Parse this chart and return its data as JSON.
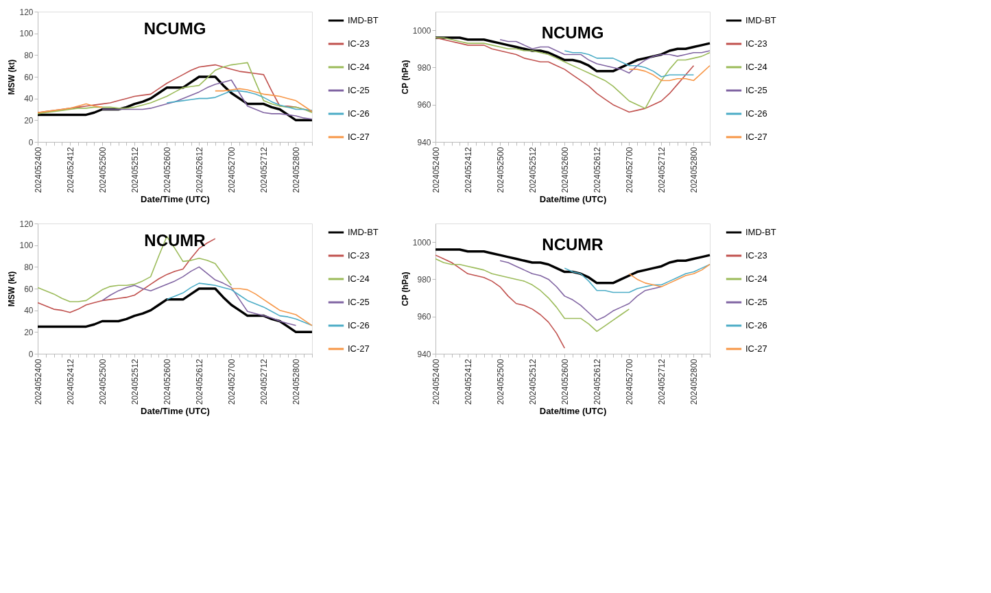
{
  "chart_data": [
    {
      "type": "line",
      "title": "NCUMG",
      "xlabel": "Date/Time (UTC)",
      "ylabel": "MSW (kt)",
      "grid": false,
      "legend": "right",
      "categories": [
        "2024052400",
        null,
        null,
        null,
        "2024052412",
        null,
        null,
        null,
        "2024052500",
        null,
        null,
        null,
        "2024052512",
        null,
        null,
        null,
        "2024052600",
        null,
        null,
        null,
        "2024052612",
        null,
        null,
        null,
        "2024052700",
        null,
        null,
        null,
        "2024052712",
        null,
        null,
        null,
        "2024052800",
        null,
        null
      ],
      "ylim": [
        0,
        120
      ],
      "yticks": [
        0,
        20,
        40,
        60,
        80,
        100,
        120
      ],
      "series": [
        {
          "name": "IMD-BT",
          "color": "#000000",
          "values": [
            25,
            25,
            25,
            25,
            25,
            25,
            25,
            27,
            30,
            30,
            30,
            32,
            35,
            37,
            40,
            45,
            50,
            50,
            50,
            55,
            60,
            60,
            60,
            52,
            45,
            40,
            35,
            35,
            35,
            32,
            30,
            25,
            20,
            20,
            20
          ]
        },
        {
          "name": "IC-23",
          "color": "#c0504d",
          "values": [
            27,
            28,
            29,
            30,
            31,
            32,
            33,
            34,
            35,
            36,
            38,
            40,
            42,
            43,
            44,
            49,
            54,
            58,
            62,
            66,
            69,
            70,
            71,
            69,
            67,
            65,
            64,
            63,
            62,
            47,
            33,
            33,
            32,
            30,
            28
          ]
        },
        {
          "name": "IC-24",
          "color": "#9bbb59",
          "values": [
            26,
            27,
            28,
            29,
            30,
            31,
            31,
            32,
            32,
            32,
            31,
            31,
            32,
            34,
            36,
            39,
            42,
            46,
            50,
            51,
            52,
            59,
            66,
            69,
            71,
            72,
            73,
            55,
            38,
            35,
            33,
            32,
            32,
            30,
            27
          ]
        },
        {
          "name": "IC-25",
          "color": "#8064a2",
          "values": [
            null,
            null,
            null,
            null,
            null,
            null,
            null,
            null,
            30,
            30,
            30,
            30,
            30,
            30,
            31,
            33,
            35,
            37,
            40,
            43,
            46,
            50,
            53,
            55,
            57,
            45,
            33,
            30,
            27,
            26,
            26,
            25,
            24,
            22,
            21
          ]
        },
        {
          "name": "IC-26",
          "color": "#4bacc6",
          "values": [
            null,
            null,
            null,
            null,
            null,
            null,
            null,
            null,
            null,
            null,
            null,
            null,
            null,
            null,
            null,
            null,
            36,
            37,
            38,
            39,
            40,
            40,
            41,
            44,
            47,
            47,
            46,
            44,
            41,
            37,
            34,
            32,
            30,
            30,
            29
          ]
        },
        {
          "name": "IC-27",
          "color": "#f79646",
          "values": [
            27,
            28,
            29,
            30,
            31,
            33,
            35,
            33,
            32,
            null,
            null,
            null,
            null,
            null,
            null,
            null,
            null,
            null,
            null,
            null,
            null,
            null,
            47,
            47,
            48,
            49,
            48,
            46,
            44,
            43,
            42,
            40,
            38,
            33,
            28
          ]
        }
      ]
    },
    {
      "type": "line",
      "title": "NCUMG",
      "xlabel": "Date/time (UTC)",
      "ylabel": "CP (hPa)",
      "grid": false,
      "legend": "right",
      "categories": [
        "2024052400",
        null,
        null,
        null,
        "2024052412",
        null,
        null,
        null,
        "2024052500",
        null,
        null,
        null,
        "2024052512",
        null,
        null,
        null,
        "2024052600",
        null,
        null,
        null,
        "2024052612",
        null,
        null,
        null,
        "2024052700",
        null,
        null,
        null,
        "2024052712",
        null,
        null,
        null,
        "2024052800",
        null,
        null
      ],
      "ylim": [
        940,
        1010
      ],
      "yticks": [
        940,
        960,
        980,
        1000
      ],
      "series": [
        {
          "name": "IMD-BT",
          "color": "#000000",
          "values": [
            996,
            996,
            996,
            996,
            995,
            995,
            995,
            994,
            993,
            992,
            991,
            990,
            989,
            989,
            988,
            986,
            984,
            984,
            983,
            981,
            978,
            978,
            978,
            980,
            982,
            984,
            985,
            986,
            987,
            989,
            990,
            990,
            991,
            992,
            993
          ]
        },
        {
          "name": "IC-23",
          "color": "#c0504d",
          "values": [
            996,
            995,
            994,
            993,
            992,
            992,
            992,
            990,
            989,
            988,
            987,
            985,
            984,
            983,
            983,
            981,
            979,
            976,
            973,
            970,
            966,
            963,
            960,
            958,
            956,
            957,
            958,
            960,
            962,
            966,
            971,
            976,
            981,
            null,
            null
          ]
        },
        {
          "name": "IC-24",
          "color": "#9bbb59",
          "values": [
            996,
            996,
            995,
            994,
            993,
            993,
            993,
            992,
            991,
            990,
            990,
            989,
            989,
            988,
            987,
            985,
            983,
            981,
            979,
            977,
            975,
            973,
            970,
            966,
            962,
            960,
            958,
            966,
            973,
            979,
            984,
            984,
            985,
            986,
            988
          ]
        },
        {
          "name": "IC-25",
          "color": "#8064a2",
          "values": [
            null,
            null,
            null,
            null,
            null,
            null,
            null,
            null,
            995,
            994,
            994,
            992,
            990,
            991,
            991,
            989,
            987,
            987,
            987,
            984,
            982,
            981,
            980,
            979,
            977,
            981,
            984,
            986,
            987,
            987,
            986,
            987,
            988,
            988,
            989
          ]
        },
        {
          "name": "IC-26",
          "color": "#4bacc6",
          "values": [
            null,
            null,
            null,
            null,
            null,
            null,
            null,
            null,
            null,
            null,
            null,
            null,
            null,
            null,
            null,
            null,
            989,
            988,
            988,
            987,
            985,
            985,
            985,
            983,
            981,
            981,
            980,
            978,
            975,
            976,
            976,
            976,
            976,
            null,
            null
          ]
        },
        {
          "name": "IC-27",
          "color": "#f79646",
          "values": [
            null,
            null,
            null,
            null,
            null,
            null,
            null,
            null,
            null,
            null,
            null,
            null,
            null,
            null,
            null,
            null,
            null,
            null,
            null,
            null,
            null,
            null,
            null,
            null,
            979,
            979,
            978,
            976,
            973,
            973,
            974,
            974,
            973,
            977,
            981
          ]
        }
      ]
    },
    {
      "type": "line",
      "title": "NCUMR",
      "xlabel": "Date/Time (UTC)",
      "ylabel": "MSW (kt)",
      "grid": false,
      "legend": "right",
      "categories": [
        "2024052400",
        null,
        null,
        null,
        "2024052412",
        null,
        null,
        null,
        "2024052500",
        null,
        null,
        null,
        "2024052512",
        null,
        null,
        null,
        "2024052600",
        null,
        null,
        null,
        "2024052612",
        null,
        null,
        null,
        "2024052700",
        null,
        null,
        null,
        "2024052712",
        null,
        null,
        null,
        "2024052800",
        null,
        null
      ],
      "ylim": [
        0,
        120
      ],
      "yticks": [
        0,
        20,
        40,
        60,
        80,
        100,
        120
      ],
      "series": [
        {
          "name": "IMD-BT",
          "color": "#000000",
          "values": [
            25,
            25,
            25,
            25,
            25,
            25,
            25,
            27,
            30,
            30,
            30,
            32,
            35,
            37,
            40,
            45,
            50,
            50,
            50,
            55,
            60,
            60,
            60,
            52,
            45,
            40,
            35,
            35,
            35,
            32,
            30,
            25,
            20,
            20,
            20
          ]
        },
        {
          "name": "IC-23",
          "color": "#c0504d",
          "values": [
            47,
            44,
            41,
            40,
            38,
            41,
            45,
            47,
            49,
            50,
            51,
            52,
            54,
            59,
            64,
            69,
            73,
            76,
            78,
            88,
            97,
            102,
            106,
            null,
            null,
            null,
            null,
            null,
            null,
            null,
            null,
            null,
            null,
            null,
            null
          ]
        },
        {
          "name": "IC-24",
          "color": "#9bbb59",
          "values": [
            61,
            58,
            55,
            51,
            48,
            48,
            49,
            54,
            59,
            62,
            63,
            63,
            64,
            67,
            71,
            90,
            108,
            97,
            85,
            86,
            88,
            86,
            83,
            73,
            63,
            null,
            null,
            null,
            null,
            null,
            null,
            null,
            null,
            null,
            null
          ]
        },
        {
          "name": "IC-25",
          "color": "#8064a2",
          "values": [
            null,
            null,
            null,
            null,
            null,
            null,
            null,
            null,
            49,
            54,
            58,
            61,
            63,
            60,
            58,
            61,
            64,
            67,
            71,
            76,
            80,
            74,
            68,
            65,
            61,
            50,
            39,
            37,
            35,
            33,
            30,
            28,
            26,
            null,
            null
          ]
        },
        {
          "name": "IC-26",
          "color": "#4bacc6",
          "values": [
            null,
            null,
            null,
            null,
            null,
            null,
            null,
            null,
            null,
            null,
            null,
            null,
            null,
            null,
            null,
            null,
            50,
            53,
            56,
            61,
            65,
            64,
            63,
            61,
            59,
            54,
            49,
            46,
            43,
            39,
            35,
            34,
            32,
            29,
            26
          ]
        },
        {
          "name": "IC-27",
          "color": "#f79646",
          "values": [
            null,
            null,
            null,
            null,
            null,
            null,
            null,
            null,
            null,
            null,
            null,
            null,
            null,
            null,
            null,
            null,
            null,
            null,
            null,
            null,
            null,
            null,
            null,
            null,
            60,
            60,
            59,
            55,
            50,
            45,
            40,
            38,
            36,
            31,
            26
          ]
        }
      ]
    },
    {
      "type": "line",
      "title": "NCUMR",
      "xlabel": "Date/time (UTC)",
      "ylabel": "CP (hPa)",
      "grid": false,
      "legend": "right",
      "categories": [
        "2024052400",
        null,
        null,
        null,
        "2024052412",
        null,
        null,
        null,
        "2024052500",
        null,
        null,
        null,
        "2024052512",
        null,
        null,
        null,
        "2024052600",
        null,
        null,
        null,
        "2024052612",
        null,
        null,
        null,
        "2024052700",
        null,
        null,
        null,
        "2024052712",
        null,
        null,
        null,
        "2024052800",
        null,
        null
      ],
      "ylim": [
        940,
        1010
      ],
      "yticks": [
        940,
        960,
        980,
        1000
      ],
      "series": [
        {
          "name": "IMD-BT",
          "color": "#000000",
          "values": [
            996,
            996,
            996,
            996,
            995,
            995,
            995,
            994,
            993,
            992,
            991,
            990,
            989,
            989,
            988,
            986,
            984,
            984,
            983,
            981,
            978,
            978,
            978,
            980,
            982,
            984,
            985,
            986,
            987,
            989,
            990,
            990,
            991,
            992,
            993
          ]
        },
        {
          "name": "IC-23",
          "color": "#c0504d",
          "values": [
            993,
            991,
            989,
            986,
            983,
            982,
            981,
            979,
            976,
            971,
            967,
            966,
            964,
            961,
            957,
            951,
            943,
            null,
            null,
            null,
            null,
            null,
            null,
            null,
            null,
            null,
            null,
            null,
            null,
            null,
            null,
            null,
            null,
            null,
            null
          ]
        },
        {
          "name": "IC-24",
          "color": "#9bbb59",
          "values": [
            991,
            989,
            988,
            988,
            987,
            986,
            985,
            983,
            982,
            981,
            980,
            979,
            977,
            974,
            970,
            965,
            959,
            959,
            959,
            956,
            952,
            955,
            958,
            961,
            964,
            null,
            null,
            null,
            null,
            null,
            null,
            null,
            null,
            null,
            null
          ]
        },
        {
          "name": "IC-25",
          "color": "#8064a2",
          "values": [
            null,
            null,
            null,
            null,
            null,
            null,
            null,
            null,
            990,
            989,
            987,
            985,
            983,
            982,
            980,
            976,
            971,
            969,
            966,
            962,
            958,
            960,
            963,
            965,
            967,
            971,
            974,
            975,
            976,
            null,
            null,
            null,
            null,
            null,
            null
          ]
        },
        {
          "name": "IC-26",
          "color": "#4bacc6",
          "values": [
            null,
            null,
            null,
            null,
            null,
            null,
            null,
            null,
            null,
            null,
            null,
            null,
            null,
            null,
            null,
            null,
            986,
            984,
            983,
            979,
            974,
            974,
            973,
            973,
            973,
            975,
            976,
            977,
            977,
            979,
            981,
            983,
            984,
            986,
            988
          ]
        },
        {
          "name": "IC-27",
          "color": "#f79646",
          "values": [
            null,
            null,
            null,
            null,
            null,
            null,
            null,
            null,
            null,
            null,
            null,
            null,
            null,
            null,
            null,
            null,
            null,
            null,
            null,
            null,
            null,
            null,
            null,
            null,
            983,
            980,
            978,
            977,
            976,
            978,
            980,
            982,
            983,
            985,
            988
          ]
        }
      ]
    }
  ]
}
